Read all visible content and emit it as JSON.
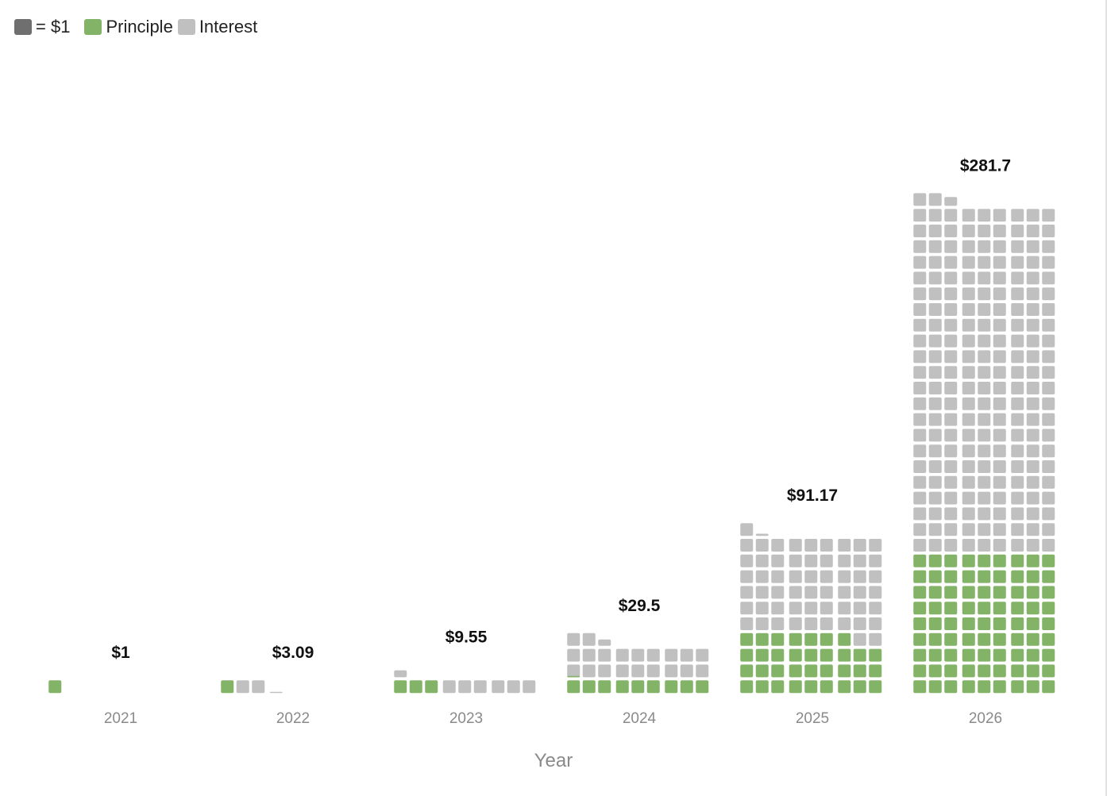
{
  "legend": {
    "unit_label": "= $1",
    "principle_label": "Principle",
    "interest_label": "Interest"
  },
  "colors": {
    "unit": "#6f6f6f",
    "principle": "#82b366",
    "interest": "#c0c0c0",
    "tick_text": "#8a8a8a",
    "value_text": "#111111"
  },
  "chart_data": {
    "type": "waffle-bar",
    "unit_value": 1,
    "categories": [
      "2021",
      "2022",
      "2023",
      "2024",
      "2025",
      "2026"
    ],
    "series": [
      {
        "name": "Principle",
        "values": [
          1,
          1,
          3,
          9.1,
          34,
          81
        ]
      },
      {
        "name": "Interest",
        "values": [
          0,
          2.09,
          6.55,
          20.4,
          57.17,
          200.7
        ]
      }
    ],
    "totals": [
      1,
      3.09,
      9.55,
      29.5,
      91.17,
      281.7
    ],
    "total_labels": [
      "$1",
      "$3.09",
      "$9.55",
      "$29.5",
      "$91.17",
      "$281.7"
    ],
    "xlabel": "Year",
    "ylabel": ""
  }
}
